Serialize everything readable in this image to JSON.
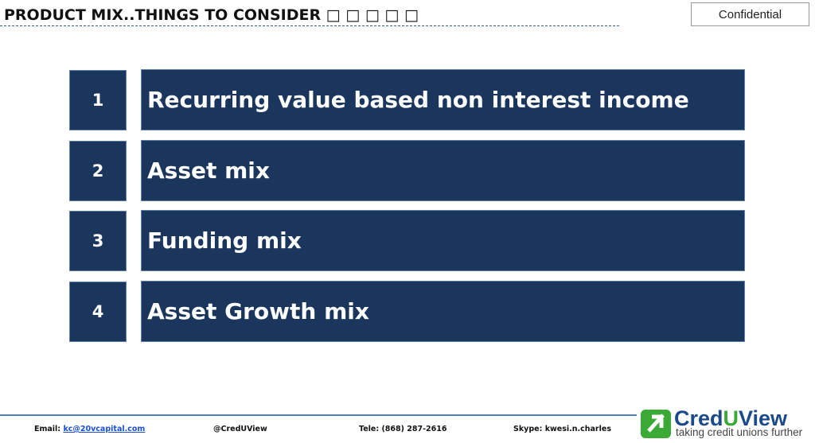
{
  "header": {
    "title": "PRODUCT MIX..THINGS TO CONSIDER □ □ □ □ □",
    "badge": "Confidential"
  },
  "items": [
    {
      "number": "1",
      "text": "Recurring value based non interest income"
    },
    {
      "number": "2",
      "text": "Asset mix"
    },
    {
      "number": "3",
      "text": "Funding mix"
    },
    {
      "number": "4",
      "text": "Asset Growth mix"
    }
  ],
  "footer": {
    "email_label": "Email:",
    "email": "kc@20vcapital.com",
    "twitter": "@CredUView",
    "tele": "Tele: (868) 287-2616",
    "skype": "Skype: kwesi.n.charles"
  },
  "logo": {
    "cred": "Cred",
    "u": "U",
    "view": "View",
    "tagline": "taking credit unions further"
  }
}
